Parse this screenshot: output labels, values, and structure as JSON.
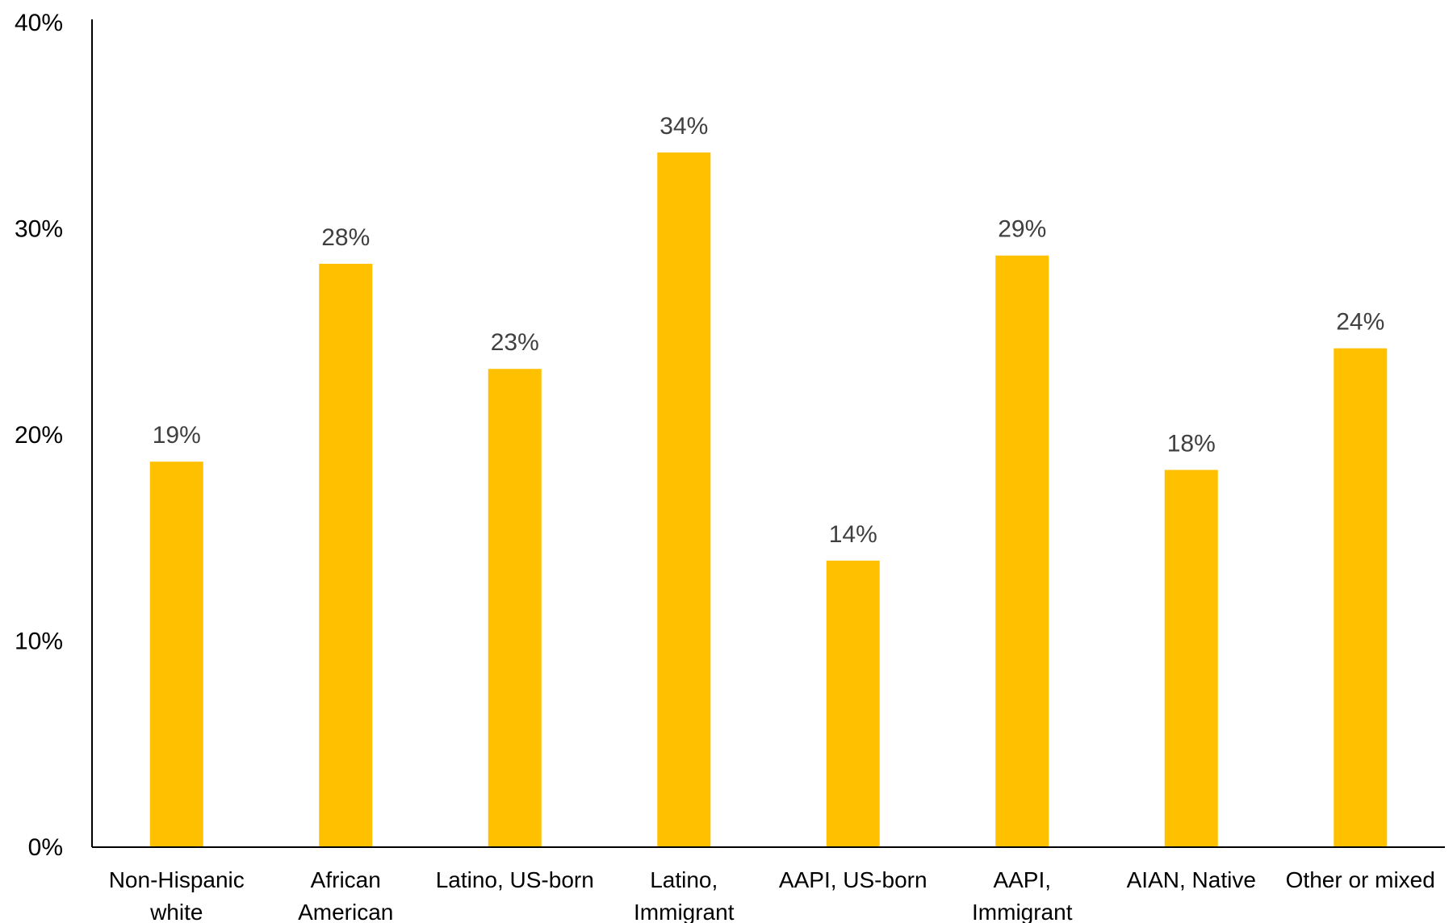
{
  "chart_data": {
    "type": "bar",
    "categories": [
      [
        "Non-Hispanic",
        "white"
      ],
      [
        "African",
        "American"
      ],
      [
        "Latino, US-born"
      ],
      [
        "Latino,",
        "Immigrant"
      ],
      [
        "AAPI, US-born"
      ],
      [
        "AAPI,",
        "Immigrant"
      ],
      [
        "AIAN, Native"
      ],
      [
        "Other or mixed"
      ]
    ],
    "values": [
      18.7,
      28.3,
      23.2,
      33.7,
      13.9,
      28.7,
      18.3,
      24.2
    ],
    "data_labels": [
      "19%",
      "28%",
      "23%",
      "34%",
      "14%",
      "29%",
      "18%",
      "24%"
    ],
    "y_ticks": [
      0,
      10,
      20,
      30,
      40
    ],
    "y_tick_labels": [
      "0%",
      "10%",
      "20%",
      "30%",
      "40%"
    ],
    "ylim": [
      0,
      40
    ],
    "title": "",
    "xlabel": "",
    "ylabel": "",
    "grid": false,
    "legend": "none",
    "bar_color": "#FFC000",
    "axis_color": "#000000",
    "label_color": "#404040"
  }
}
